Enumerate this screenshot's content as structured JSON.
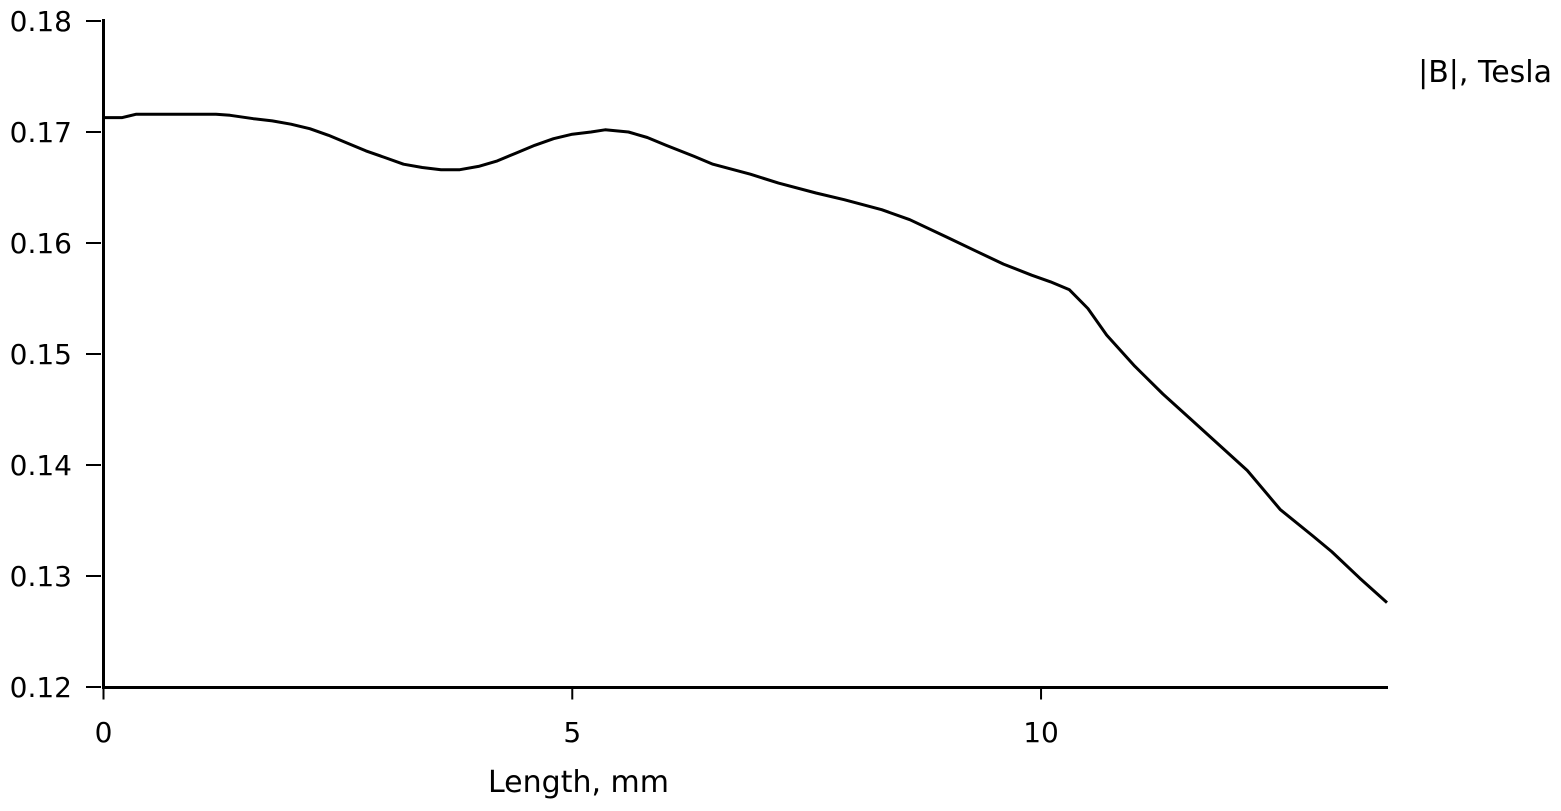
{
  "chart_data": {
    "type": "line",
    "title": "|B|, Tesla",
    "xlabel": "Length, mm",
    "ylabel": "|B|, Tesla",
    "xlim": [
      0,
      13.69
    ],
    "ylim": [
      0.12,
      0.18
    ],
    "grid": false,
    "legend": "none",
    "background_color": "#ffffff",
    "axis_color": "#000000",
    "line_color": "#000000",
    "x_ticks": [
      {
        "v": 0,
        "label": "0"
      },
      {
        "v": 5,
        "label": "5"
      },
      {
        "v": 10,
        "label": "10"
      }
    ],
    "y_ticks": [
      {
        "v": 0.12,
        "label": "0.12"
      },
      {
        "v": 0.13,
        "label": "0.13"
      },
      {
        "v": 0.14,
        "label": "0.14"
      },
      {
        "v": 0.15,
        "label": "0.15"
      },
      {
        "v": 0.16,
        "label": "0.16"
      },
      {
        "v": 0.17,
        "label": "0.17"
      },
      {
        "v": 0.18,
        "label": "0.18"
      }
    ],
    "series": [
      {
        "name": "|B|",
        "x": [
          0,
          0.2,
          0.35,
          0.5,
          0.8,
          1.0,
          1.2,
          1.35,
          1.6,
          1.8,
          2.0,
          2.2,
          2.4,
          2.6,
          2.8,
          3.0,
          3.2,
          3.4,
          3.6,
          3.8,
          4.0,
          4.2,
          4.4,
          4.6,
          4.8,
          5.0,
          5.2,
          5.35,
          5.6,
          5.8,
          6.0,
          6.3,
          6.5,
          6.9,
          7.2,
          7.6,
          7.9,
          8.3,
          8.6,
          9.0,
          9.3,
          9.6,
          9.9,
          10.1,
          10.3,
          10.5,
          10.7,
          11.0,
          11.3,
          11.6,
          11.9,
          12.2,
          12.55,
          12.9,
          13.1,
          13.4,
          13.69
        ],
        "y": [
          0.1713,
          0.1713,
          0.1716,
          0.1716,
          0.1716,
          0.1716,
          0.1716,
          0.1715,
          0.1712,
          0.171,
          0.1707,
          0.1703,
          0.1697,
          0.169,
          0.1683,
          0.1677,
          0.1671,
          0.1668,
          0.1666,
          0.1666,
          0.1669,
          0.1674,
          0.1681,
          0.1688,
          0.1694,
          0.1698,
          0.17,
          0.1702,
          0.17,
          0.1695,
          0.1688,
          0.1678,
          0.1671,
          0.1662,
          0.1654,
          0.1645,
          0.1639,
          0.163,
          0.1621,
          0.1605,
          0.1593,
          0.1581,
          0.1571,
          0.1565,
          0.1558,
          0.1541,
          0.1517,
          0.1489,
          0.1464,
          0.1441,
          0.1418,
          0.1395,
          0.136,
          0.1336,
          0.1322,
          0.1298,
          0.1276
        ]
      }
    ]
  }
}
